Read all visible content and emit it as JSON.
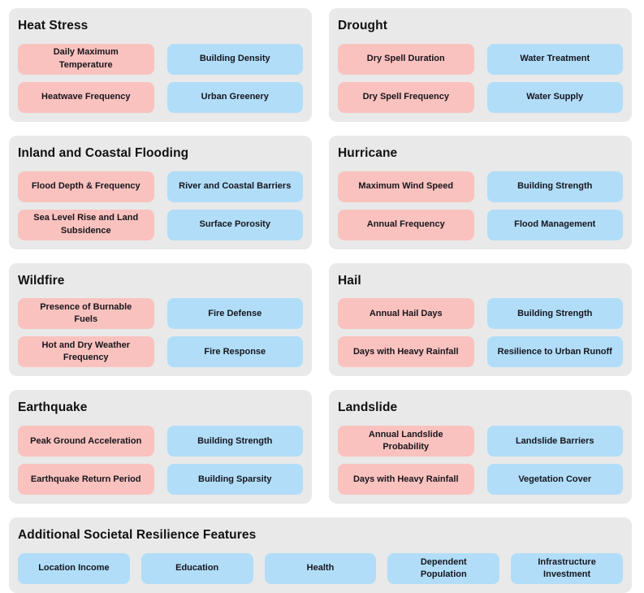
{
  "colors": {
    "page_bg": "#ffffff",
    "card_bg": "#e9e9e9",
    "hazard_pill_bg": "#fac2be",
    "resilience_pill_bg": "#b1ddf8",
    "title_text": "#111111",
    "pill_text": "#16161d"
  },
  "cards": [
    {
      "title": "Heat Stress",
      "hazards": [
        "Daily Maximum Temperature",
        "Heatwave Frequency"
      ],
      "resilience": [
        "Building Density",
        "Urban Greenery"
      ]
    },
    {
      "title": "Drought",
      "hazards": [
        "Dry Spell Duration",
        "Dry Spell Frequency"
      ],
      "resilience": [
        "Water Treatment",
        "Water Supply"
      ]
    },
    {
      "title": "Inland and Coastal Flooding",
      "hazards": [
        "Flood Depth & Frequency",
        "Sea Level Rise and Land Subsidence"
      ],
      "resilience": [
        "River and Coastal Barriers",
        "Surface Porosity"
      ]
    },
    {
      "title": "Hurricane",
      "hazards": [
        "Maximum Wind Speed",
        "Annual Frequency"
      ],
      "resilience": [
        "Building Strength",
        "Flood Management"
      ]
    },
    {
      "title": "Wildfire",
      "hazards": [
        "Presence of Burnable Fuels",
        "Hot and Dry Weather Frequency"
      ],
      "resilience": [
        "Fire Defense",
        "Fire Response"
      ]
    },
    {
      "title": "Hail",
      "hazards": [
        "Annual Hail Days",
        "Days with Heavy Rainfall"
      ],
      "resilience": [
        "Building Strength",
        "Resilience to Urban Runoff"
      ]
    },
    {
      "title": "Earthquake",
      "hazards": [
        "Peak Ground Acceleration",
        "Earthquake Return Period"
      ],
      "resilience": [
        "Building Strength",
        "Building Sparsity"
      ]
    },
    {
      "title": "Landslide",
      "hazards": [
        "Annual Landslide Probability",
        "Days with Heavy Rainfall"
      ],
      "resilience": [
        "Landslide Barriers",
        "Vegetation Cover"
      ]
    }
  ],
  "footer_card": {
    "title": "Additional Societal Resilience Features",
    "features": [
      "Location Income",
      "Education",
      "Health",
      "Dependent Population",
      "Infrastructure Investment"
    ]
  }
}
